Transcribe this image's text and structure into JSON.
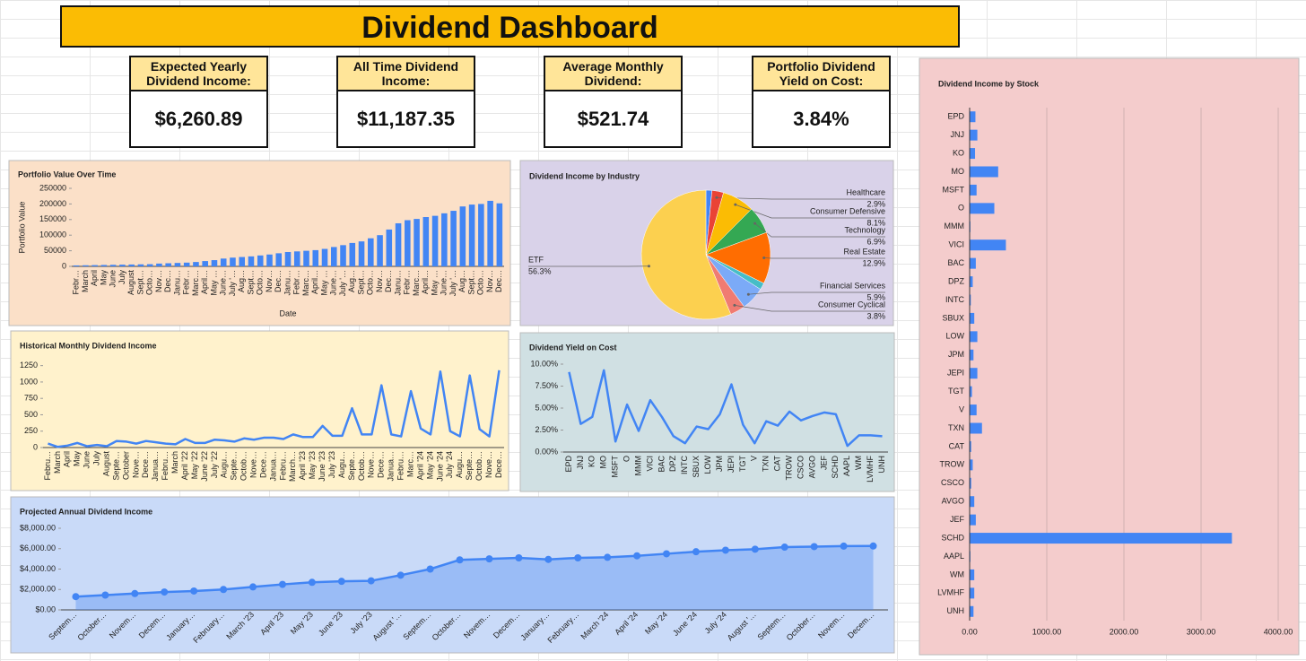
{
  "title": "Dividend Dashboard",
  "kpis": [
    {
      "label": "Expected Yearly Dividend Income:",
      "value": "$6,260.89"
    },
    {
      "label": "All Time Dividend Income:",
      "value": "$11,187.35"
    },
    {
      "label": "Average Monthly Dividend:",
      "value": "$521.74"
    },
    {
      "label": "Portfolio Dividend Yield on Cost:",
      "value": "3.84%"
    }
  ],
  "chart_data": [
    {
      "type": "bar",
      "title": "Portfolio Value Over Time",
      "ylabel": "Portfolio Value",
      "xlabel": "Date",
      "color": "#4285f4",
      "grid": false,
      "categories": [
        "Febr…",
        "March",
        "April",
        "May",
        "June",
        "July",
        "August",
        "Sept…",
        "Octo…",
        "Nov…",
        "Dec…",
        "Janu…",
        "Febr…",
        "Marc…",
        "April…",
        "May …",
        "June…",
        "July '…",
        "Aug…",
        "Sept…",
        "Octo…",
        "Nov…",
        "Dec…",
        "Janu…",
        "Febr…",
        "Marc…",
        "April…",
        "May …",
        "June…",
        "July '…",
        "Aug…",
        "Sept…",
        "Octo…",
        "Nov…",
        "Dec…",
        "Janu…",
        "Febr…",
        "Marc…",
        "April…",
        "May …",
        "June…",
        "July '…",
        "Aug…",
        "Sept…",
        "Octo…",
        "Nov…",
        "Dec…"
      ],
      "values": [
        3000,
        3500,
        4000,
        4500,
        5000,
        5500,
        6000,
        6500,
        7000,
        9000,
        10000,
        11000,
        12000,
        14000,
        17000,
        20000,
        25000,
        28000,
        30000,
        32000,
        35000,
        38000,
        42000,
        46000,
        48000,
        50000,
        52000,
        56000,
        62000,
        68000,
        75000,
        80000,
        90000,
        100000,
        118000,
        138000,
        148000,
        152000,
        158000,
        162000,
        170000,
        178000,
        192000,
        198000,
        200000,
        210000,
        202000
      ],
      "ylim": [
        0,
        250000
      ],
      "yticks": [
        0,
        50000,
        100000,
        150000,
        200000,
        250000
      ]
    },
    {
      "type": "pie",
      "title": "Dividend Income by Industry",
      "categories": [
        null,
        "Healthcare",
        "Consumer Defensive",
        "Technology",
        "Real Estate",
        null,
        "Financial Services",
        "Consumer Cyclical",
        "ETF"
      ],
      "values": [
        1.5,
        2.9,
        8.1,
        6.9,
        12.9,
        1.7,
        5.9,
        3.8,
        56.3
      ],
      "value_labels": [
        null,
        "2.9%",
        "8.1%",
        "6.9%",
        "12.9%",
        null,
        "5.9%",
        "3.8%",
        "56.3%"
      ],
      "colors": [
        "#4285f4",
        "#ea4335",
        "#fbbc04",
        "#34a853",
        "#ff6d01",
        "#46bdc6",
        "#7baaf7",
        "#f07b72",
        "#fcd04f"
      ]
    },
    {
      "type": "line",
      "title": "Historical Monthly Dividend Income",
      "color": "#4285f4",
      "grid": false,
      "categories": [
        "Febru…",
        "March",
        "April",
        "May",
        "June",
        "July",
        "August",
        "Septe…",
        "October",
        "Nove…",
        "Dece…",
        "Janua…",
        "Febru…",
        "March",
        "April '22",
        "May '22",
        "June '22",
        "July '22",
        "Augu…",
        "Septe…",
        "Octob…",
        "Nove…",
        "Dece…",
        "Janua…",
        "Febru…",
        "March…",
        "April '23",
        "May '23",
        "June '23",
        "July '23",
        "Augu…",
        "Septe…",
        "Octob…",
        "Nove…",
        "Dece…",
        "Janua…",
        "Febru…",
        "Marc…",
        "April '24",
        "May '24",
        "June '24",
        "July '24",
        "Augu…",
        "Septe…",
        "Octob…",
        "Nove…",
        "Dece…"
      ],
      "values": [
        60,
        10,
        30,
        70,
        20,
        40,
        20,
        100,
        90,
        60,
        100,
        80,
        60,
        50,
        130,
        70,
        70,
        120,
        110,
        90,
        140,
        120,
        150,
        150,
        130,
        200,
        160,
        160,
        330,
        180,
        180,
        600,
        200,
        200,
        950,
        200,
        170,
        860,
        290,
        200,
        1160,
        250,
        170,
        1100,
        280,
        170,
        1180
      ],
      "ylim": [
        0,
        1300
      ],
      "yticks": [
        0,
        250,
        500,
        750,
        1000,
        1250
      ]
    },
    {
      "type": "line",
      "title": "Dividend Yield on Cost",
      "color": "#4285f4",
      "grid": false,
      "categories": [
        "EPD",
        "JNJ",
        "KO",
        "MO",
        "MSFT",
        "O",
        "MMM",
        "VICI",
        "BAC",
        "DPZ",
        "INTC",
        "SBUX",
        "LOW",
        "JPM",
        "JEPI",
        "TGT",
        "V",
        "TXN",
        "CAT",
        "TROW",
        "CSCO",
        "AVGO",
        "JEF",
        "SCHD",
        "AAPL",
        "WM",
        "LVMHF",
        "UNH"
      ],
      "values": [
        9.1,
        3.2,
        4.0,
        9.3,
        1.2,
        5.4,
        2.4,
        5.9,
        4.0,
        1.8,
        1.0,
        2.9,
        2.6,
        4.3,
        7.7,
        3.1,
        1.0,
        3.5,
        3.0,
        4.6,
        3.6,
        4.1,
        4.5,
        4.3,
        0.7,
        1.9,
        1.9,
        1.8
      ],
      "ylim": [
        0,
        10
      ],
      "yticks": [
        {
          "value": 0,
          "label": "0.00%"
        },
        {
          "value": 2.5,
          "label": "2.50%"
        },
        {
          "value": 5,
          "label": "5.00%"
        },
        {
          "value": 7.5,
          "label": "7.50%"
        },
        {
          "value": 10,
          "label": "10.00%"
        }
      ]
    },
    {
      "type": "area",
      "title": "Projected Annual Dividend Income",
      "color": "#4285f4",
      "markers": true,
      "grid": false,
      "categories": [
        "Septem…",
        "October…",
        "Novem…",
        "Decem…",
        "January…",
        "February…",
        "March '23",
        "April '23",
        "May '23",
        "June '23",
        "July '23",
        "August '…",
        "Septem…",
        "October…",
        "Novem…",
        "Decem…",
        "January…",
        "February…",
        "March '24",
        "April '24",
        "May '24",
        "June '24",
        "July '24",
        "August '…",
        "Septem…",
        "October…",
        "Novem…",
        "Decem…"
      ],
      "values": [
        1300,
        1450,
        1600,
        1750,
        1850,
        2000,
        2250,
        2500,
        2700,
        2800,
        2850,
        3400,
        4000,
        4900,
        5000,
        5100,
        4950,
        5100,
        5150,
        5300,
        5500,
        5700,
        5850,
        5950,
        6150,
        6200,
        6250,
        6261
      ],
      "ylim": [
        0,
        8000
      ],
      "yticks": [
        {
          "value": 0,
          "label": "$0.00"
        },
        {
          "value": 2000,
          "label": "$2,000.00"
        },
        {
          "value": 4000,
          "label": "$4,000.00"
        },
        {
          "value": 6000,
          "label": "$6,000.00"
        },
        {
          "value": 8000,
          "label": "$8,000.00"
        }
      ]
    },
    {
      "type": "barh",
      "title": "Dividend Income by Stock",
      "color": "#4285f4",
      "grid": true,
      "categories": [
        "EPD",
        "JNJ",
        "KO",
        "MO",
        "MSFT",
        "O",
        "MMM",
        "VICI",
        "BAC",
        "DPZ",
        "INTC",
        "SBUX",
        "LOW",
        "JPM",
        "JEPI",
        "TGT",
        "V",
        "TXN",
        "CAT",
        "TROW",
        "CSCO",
        "AVGO",
        "JEF",
        "SCHD",
        "AAPL",
        "WM",
        "LVMHF",
        "UNH"
      ],
      "values": [
        75,
        100,
        70,
        370,
        90,
        320,
        10,
        470,
        80,
        40,
        15,
        60,
        100,
        50,
        100,
        30,
        90,
        160,
        20,
        40,
        20,
        60,
        80,
        3400,
        10,
        60,
        60,
        50
      ],
      "xlim": [
        0,
        4000
      ],
      "xticks": [
        {
          "value": 0,
          "label": "0.00"
        },
        {
          "value": 1000,
          "label": "1000.00"
        },
        {
          "value": 2000,
          "label": "2000.00"
        },
        {
          "value": 3000,
          "label": "3000.00"
        },
        {
          "value": 4000,
          "label": "4000.00"
        }
      ]
    }
  ]
}
